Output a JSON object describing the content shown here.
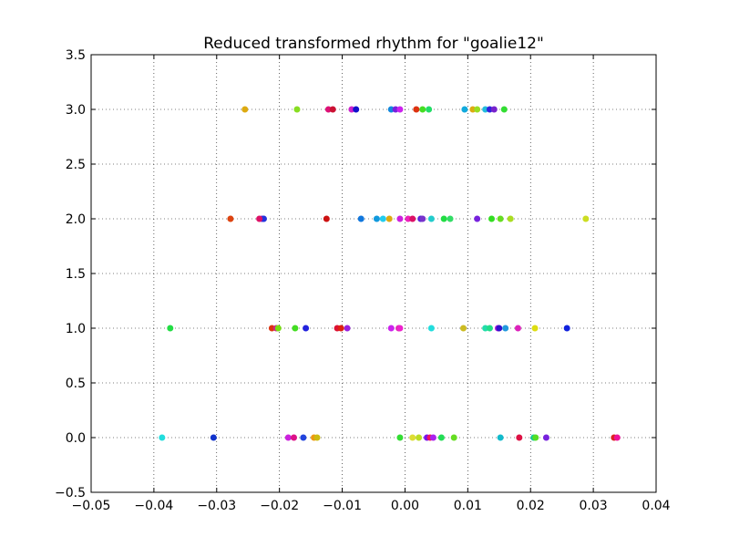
{
  "chart_data": {
    "type": "scatter",
    "title": "Reduced transformed rhythm for \"goalie12\"",
    "xlabel": "",
    "ylabel": "",
    "xlim": [
      -0.05,
      0.04
    ],
    "ylim": [
      -0.5,
      3.5
    ],
    "xticks": [
      -0.05,
      -0.04,
      -0.03,
      -0.02,
      -0.01,
      0.0,
      0.01,
      0.02,
      0.03,
      0.04
    ],
    "xtick_labels": [
      "−0.05",
      "−0.04",
      "−0.03",
      "−0.02",
      "−0.01",
      "0.00",
      "0.01",
      "0.02",
      "0.03",
      "0.04"
    ],
    "yticks": [
      -0.5,
      0.0,
      0.5,
      1.0,
      1.5,
      2.0,
      2.5,
      3.0,
      3.5
    ],
    "ytick_labels": [
      "−0.5",
      "0.0",
      "0.5",
      "1.0",
      "1.5",
      "2.0",
      "2.5",
      "3.0",
      "3.5"
    ],
    "grid": true,
    "grid_style": "dotted",
    "points": [
      {
        "x": -0.0387,
        "y": 0,
        "color": "#22dddd"
      },
      {
        "x": -0.0305,
        "y": 0,
        "color": "#1133cc"
      },
      {
        "x": -0.0186,
        "y": 0,
        "color": "#cc22dd"
      },
      {
        "x": -0.0177,
        "y": 0,
        "color": "#dd1188"
      },
      {
        "x": -0.0162,
        "y": 0,
        "color": "#2244dd"
      },
      {
        "x": -0.0145,
        "y": 0,
        "color": "#ee9911"
      },
      {
        "x": -0.014,
        "y": 0,
        "color": "#ccbb11"
      },
      {
        "x": -0.0008,
        "y": 0,
        "color": "#33dd33"
      },
      {
        "x": 0.0012,
        "y": 0,
        "color": "#dddd33"
      },
      {
        "x": 0.0022,
        "y": 0,
        "color": "#bbdd22"
      },
      {
        "x": 0.0035,
        "y": 0,
        "color": "#7711ee"
      },
      {
        "x": 0.004,
        "y": 0,
        "color": "#ee1166"
      },
      {
        "x": 0.0045,
        "y": 0,
        "color": "#aa22ee"
      },
      {
        "x": 0.0058,
        "y": 0,
        "color": "#22dd55"
      },
      {
        "x": 0.0078,
        "y": 0,
        "color": "#66dd22"
      },
      {
        "x": 0.0152,
        "y": 0,
        "color": "#11bbcc"
      },
      {
        "x": 0.0182,
        "y": 0,
        "color": "#dd1144"
      },
      {
        "x": 0.0205,
        "y": 0,
        "color": "#11cc99"
      },
      {
        "x": 0.0208,
        "y": 0,
        "color": "#55dd22"
      },
      {
        "x": 0.0225,
        "y": 0,
        "color": "#7722dd"
      },
      {
        "x": 0.0333,
        "y": 0,
        "color": "#dd2222"
      },
      {
        "x": 0.0338,
        "y": 0,
        "color": "#ee1199"
      },
      {
        "x": -0.0374,
        "y": 1,
        "color": "#22dd44"
      },
      {
        "x": -0.0212,
        "y": 1,
        "color": "#dd3311"
      },
      {
        "x": -0.0205,
        "y": 1,
        "color": "#cc2288"
      },
      {
        "x": -0.0202,
        "y": 1,
        "color": "#77dd11"
      },
      {
        "x": -0.0175,
        "y": 1,
        "color": "#44dd22"
      },
      {
        "x": -0.0158,
        "y": 1,
        "color": "#2222dd"
      },
      {
        "x": -0.0108,
        "y": 1,
        "color": "#dd1133"
      },
      {
        "x": -0.0102,
        "y": 1,
        "color": "#dd2211"
      },
      {
        "x": -0.0092,
        "y": 1,
        "color": "#9922dd"
      },
      {
        "x": -0.0022,
        "y": 1,
        "color": "#cc22ee"
      },
      {
        "x": -0.001,
        "y": 1,
        "color": "#dd22aa"
      },
      {
        "x": -0.0008,
        "y": 1,
        "color": "#ee22cc"
      },
      {
        "x": 0.0042,
        "y": 1,
        "color": "#22dddd"
      },
      {
        "x": 0.0093,
        "y": 1,
        "color": "#ccbb22"
      },
      {
        "x": 0.0128,
        "y": 1,
        "color": "#22ddaa"
      },
      {
        "x": 0.0135,
        "y": 1,
        "color": "#22dd88"
      },
      {
        "x": 0.0148,
        "y": 1,
        "color": "#bb22dd"
      },
      {
        "x": 0.015,
        "y": 1,
        "color": "#3311cc"
      },
      {
        "x": 0.016,
        "y": 1,
        "color": "#2299dd"
      },
      {
        "x": 0.018,
        "y": 1,
        "color": "#dd22bb"
      },
      {
        "x": 0.0207,
        "y": 1,
        "color": "#dddd11"
      },
      {
        "x": 0.0258,
        "y": 1,
        "color": "#1122dd"
      },
      {
        "x": -0.0278,
        "y": 2,
        "color": "#dd4411"
      },
      {
        "x": -0.0228,
        "y": 2,
        "color": "#7722dd"
      },
      {
        "x": -0.0225,
        "y": 2,
        "color": "#2233dd"
      },
      {
        "x": -0.0232,
        "y": 2,
        "color": "#dd1166"
      },
      {
        "x": -0.0125,
        "y": 2,
        "color": "#cc1111"
      },
      {
        "x": -0.007,
        "y": 2,
        "color": "#1177dd"
      },
      {
        "x": -0.0045,
        "y": 2,
        "color": "#1199dd"
      },
      {
        "x": -0.0035,
        "y": 2,
        "color": "#22ccee"
      },
      {
        "x": -0.0025,
        "y": 2,
        "color": "#ddaa11"
      },
      {
        "x": -0.0008,
        "y": 2,
        "color": "#cc22dd"
      },
      {
        "x": 0.0005,
        "y": 2,
        "color": "#ee22bb"
      },
      {
        "x": 0.0012,
        "y": 2,
        "color": "#dd1166"
      },
      {
        "x": 0.0025,
        "y": 2,
        "color": "#5522dd"
      },
      {
        "x": 0.0028,
        "y": 2,
        "color": "#7733cc"
      },
      {
        "x": 0.0042,
        "y": 2,
        "color": "#22cccc"
      },
      {
        "x": 0.0062,
        "y": 2,
        "color": "#22dd44"
      },
      {
        "x": 0.0072,
        "y": 2,
        "color": "#33dd66"
      },
      {
        "x": 0.0115,
        "y": 2,
        "color": "#7722dd"
      },
      {
        "x": 0.0138,
        "y": 2,
        "color": "#33dd22"
      },
      {
        "x": 0.0152,
        "y": 2,
        "color": "#66dd22"
      },
      {
        "x": 0.0168,
        "y": 2,
        "color": "#aadd22"
      },
      {
        "x": 0.0288,
        "y": 2,
        "color": "#ccdd22"
      },
      {
        "x": -0.0255,
        "y": 3,
        "color": "#ddaa11"
      },
      {
        "x": -0.0172,
        "y": 3,
        "color": "#88dd22"
      },
      {
        "x": -0.0122,
        "y": 3,
        "color": "#dd1177"
      },
      {
        "x": -0.0115,
        "y": 3,
        "color": "#cc1133"
      },
      {
        "x": -0.0085,
        "y": 3,
        "color": "#cc22cc"
      },
      {
        "x": -0.0078,
        "y": 3,
        "color": "#1111cc"
      },
      {
        "x": -0.0022,
        "y": 3,
        "color": "#1188dd"
      },
      {
        "x": -0.0015,
        "y": 3,
        "color": "#7722dd"
      },
      {
        "x": -0.0008,
        "y": 3,
        "color": "#cc22ee"
      },
      {
        "x": 0.0018,
        "y": 3,
        "color": "#dd3311"
      },
      {
        "x": 0.0028,
        "y": 3,
        "color": "#44dd22"
      },
      {
        "x": 0.0038,
        "y": 3,
        "color": "#22dd66"
      },
      {
        "x": 0.0095,
        "y": 3,
        "color": "#11aadd"
      },
      {
        "x": 0.0108,
        "y": 3,
        "color": "#ddaa11"
      },
      {
        "x": 0.0115,
        "y": 3,
        "color": "#99dd22"
      },
      {
        "x": 0.0128,
        "y": 3,
        "color": "#22bbdd"
      },
      {
        "x": 0.0135,
        "y": 3,
        "color": "#3322dd"
      },
      {
        "x": 0.0142,
        "y": 3,
        "color": "#7722cc"
      },
      {
        "x": 0.0158,
        "y": 3,
        "color": "#33dd33"
      }
    ]
  }
}
